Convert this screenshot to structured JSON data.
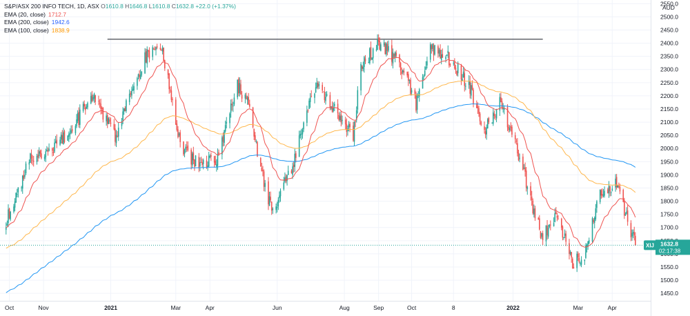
{
  "legend": {
    "symbol": "S&P/ASX 200 INFO TECH, 1D, ASX",
    "o_label": "O",
    "o": "1610.8",
    "h_label": "H",
    "h": "1646.8",
    "l_label": "L",
    "l": "1610.8",
    "c_label": "C",
    "c": "1632.8",
    "change": "+22.0 (+1.37%)",
    "indicators": [
      {
        "label": "EMA (20, close)",
        "value": "1712.7",
        "color": "#ef5350"
      },
      {
        "label": "EMA (200, close)",
        "value": "1942.6",
        "color": "#2962ff"
      },
      {
        "label": "EMA (100, close)",
        "value": "1838.9",
        "color": "#ff9800"
      }
    ]
  },
  "price_axis": {
    "currency": "AUD",
    "ticks": [
      "2550.0",
      "2500.0",
      "2450.0",
      "2400.0",
      "2350.0",
      "2300.0",
      "2250.0",
      "2200.0",
      "2150.0",
      "2100.0",
      "2050.0",
      "2000.0",
      "1950.0",
      "1900.0",
      "1850.0",
      "1800.0",
      "1750.0",
      "1700.0",
      "1650.0",
      "1600.0",
      "1550.0",
      "1500.0",
      "1450.0"
    ]
  },
  "price_label": {
    "ticker": "XIJ",
    "price": "1632.8",
    "countdown": "02:17:38"
  },
  "time_axis": {
    "labels": [
      {
        "text": "Oct",
        "year": false
      },
      {
        "text": "Nov",
        "year": false
      },
      {
        "text": "2021",
        "year": true
      },
      {
        "text": "Mar",
        "year": false
      },
      {
        "text": "Apr",
        "year": false
      },
      {
        "text": "Jun",
        "year": false
      },
      {
        "text": "Aug",
        "year": false
      },
      {
        "text": "Sep",
        "year": false
      },
      {
        "text": "Oct",
        "year": false
      },
      {
        "text": "8",
        "year": false
      },
      {
        "text": "2022",
        "year": true
      },
      {
        "text": "Mar",
        "year": false
      },
      {
        "text": "Apr",
        "year": false
      }
    ]
  },
  "colors": {
    "up": "#26a69a",
    "down": "#ef5350",
    "ema20": "#ef5350",
    "ema100": "#ffb74d",
    "ema200": "#2196f3",
    "resistance": "#131722",
    "grid": "#f0f3fa",
    "last_price_line": "#26a69a"
  },
  "chart_data": {
    "type": "candlestick",
    "title": "S&P/ASX 200 INFO TECH, 1D, ASX",
    "ylabel": "AUD",
    "ylim": [
      1420,
      2560
    ],
    "grid": true,
    "price_scale": "right",
    "resistance_level": 2415,
    "last_close": 1632.8,
    "x_range": [
      "2020-09-25",
      "2022-04-29"
    ],
    "keypoints": [
      {
        "date": "2020-09-28",
        "close": 1720
      },
      {
        "date": "2020-10-20",
        "close": 1960
      },
      {
        "date": "2020-11-02",
        "close": 1970
      },
      {
        "date": "2020-11-25",
        "close": 2060
      },
      {
        "date": "2020-12-15",
        "close": 2200
      },
      {
        "date": "2021-01-05",
        "close": 2050
      },
      {
        "date": "2021-02-01",
        "close": 2350
      },
      {
        "date": "2021-02-15",
        "close": 2400
      },
      {
        "date": "2021-03-05",
        "close": 2020
      },
      {
        "date": "2021-03-17",
        "close": 1950
      },
      {
        "date": "2021-04-07",
        "close": 1950
      },
      {
        "date": "2021-04-26",
        "close": 2240
      },
      {
        "date": "2021-05-06",
        "close": 2160
      },
      {
        "date": "2021-05-17",
        "close": 1920
      },
      {
        "date": "2021-05-27",
        "close": 1760
      },
      {
        "date": "2021-06-14",
        "close": 1920
      },
      {
        "date": "2021-07-07",
        "close": 2260
      },
      {
        "date": "2021-07-20",
        "close": 2160
      },
      {
        "date": "2021-08-02",
        "close": 2080
      },
      {
        "date": "2021-08-09",
        "close": 2050
      },
      {
        "date": "2021-08-16",
        "close": 2310
      },
      {
        "date": "2021-09-01",
        "close": 2400
      },
      {
        "date": "2021-09-20",
        "close": 2330
      },
      {
        "date": "2021-10-05",
        "close": 2170
      },
      {
        "date": "2021-10-18",
        "close": 2380
      },
      {
        "date": "2021-11-01",
        "close": 2360
      },
      {
        "date": "2021-11-22",
        "close": 2240
      },
      {
        "date": "2021-12-06",
        "close": 2060
      },
      {
        "date": "2021-12-20",
        "close": 2180
      },
      {
        "date": "2022-01-05",
        "close": 1990
      },
      {
        "date": "2022-01-27",
        "close": 1660
      },
      {
        "date": "2022-02-10",
        "close": 1760
      },
      {
        "date": "2022-02-24",
        "close": 1560
      },
      {
        "date": "2022-03-07",
        "close": 1600
      },
      {
        "date": "2022-03-21",
        "close": 1820
      },
      {
        "date": "2022-04-04",
        "close": 1870
      },
      {
        "date": "2022-04-12",
        "close": 1760
      },
      {
        "date": "2022-04-22",
        "close": 1633
      }
    ],
    "series": [
      {
        "name": "EMA (20, close)",
        "last": 1712.7
      },
      {
        "name": "EMA (200, close)",
        "last": 1942.6
      },
      {
        "name": "EMA (100, close)",
        "last": 1838.9
      }
    ]
  }
}
